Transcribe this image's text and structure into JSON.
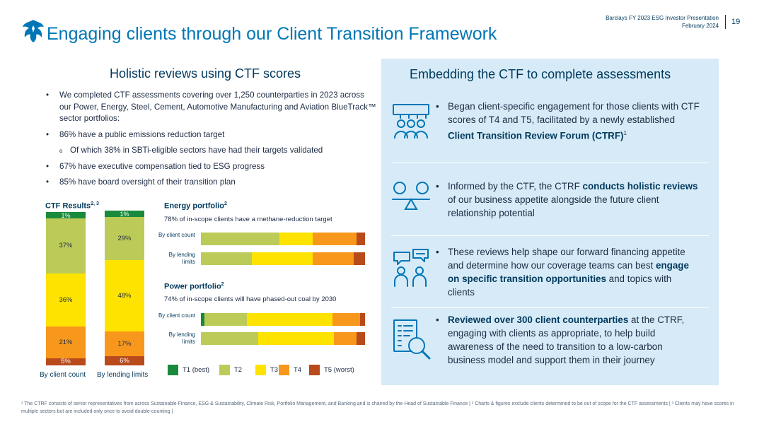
{
  "header": {
    "title": "Engaging clients through our Client Transition Framework",
    "meta_line1": "Barclays FY 2023 ESG Investor Presentation",
    "meta_line2": "February 2024",
    "page_number": "19"
  },
  "left": {
    "heading": "Holistic reviews using CTF scores",
    "bullets": [
      "We completed CTF assessments covering over 1,250 counterparties in 2023 across our Power, Energy, Steel, Cement, Automotive Manufacturing and Aviation BlueTrack™ sector portfolios:",
      "86% have a public emissions reduction target",
      "67% have executive compensation tied to ESG progress",
      "85% have board oversight of their transition plan"
    ],
    "sub_bullet": "Of which 38% in SBTi-eligible sectors have had their targets validated"
  },
  "ctf_results": {
    "title": "CTF Results",
    "title_sup": "2, 3",
    "col1_label": "By client count",
    "col2_label": "By lending limits",
    "col1_values": {
      "t5": "5%",
      "t4": "21%",
      "t3": "36%",
      "t2": "37%",
      "t1": "1%"
    },
    "col2_values": {
      "t5": "6%",
      "t4": "17%",
      "t3": "48%",
      "t2": "29%",
      "t1": "1%"
    }
  },
  "energy": {
    "title": "Energy portfolio",
    "title_sup": "2",
    "subtitle": "78% of in-scope clients have a methane-reduction target",
    "row1_label": "By client count",
    "row2_label": "By lending limits"
  },
  "power": {
    "title": "Power portfolio",
    "title_sup": "2",
    "subtitle": "74% of in-scope clients will have phased-out coal by 2030",
    "row1_label": "By client count",
    "row2_label": "By lending limits"
  },
  "chart_data": [
    {
      "type": "bar",
      "stacked": true,
      "orientation": "vertical",
      "title": "CTF Results",
      "categories": [
        "By client count",
        "By lending limits"
      ],
      "series": [
        {
          "name": "T1 (best)",
          "values": [
            1,
            1
          ]
        },
        {
          "name": "T2",
          "values": [
            37,
            29
          ]
        },
        {
          "name": "T3",
          "values": [
            36,
            48
          ]
        },
        {
          "name": "T4",
          "values": [
            21,
            17
          ]
        },
        {
          "name": "T5 (worst)",
          "values": [
            5,
            6
          ]
        }
      ],
      "ylim": [
        0,
        100
      ]
    },
    {
      "type": "bar",
      "stacked": true,
      "orientation": "horizontal",
      "title": "Energy portfolio",
      "categories": [
        "By client count",
        "By lending limits"
      ],
      "series": [
        {
          "name": "T1 (best)",
          "values": [
            0,
            0
          ]
        },
        {
          "name": "T2",
          "values": [
            48,
            31
          ]
        },
        {
          "name": "T3",
          "values": [
            20,
            37
          ]
        },
        {
          "name": "T4",
          "values": [
            27,
            25
          ]
        },
        {
          "name": "T5 (worst)",
          "values": [
            5,
            7
          ]
        }
      ],
      "xlim": [
        0,
        100
      ]
    },
    {
      "type": "bar",
      "stacked": true,
      "orientation": "horizontal",
      "title": "Power portfolio",
      "categories": [
        "By client count",
        "By lending limits"
      ],
      "series": [
        {
          "name": "T1 (best)",
          "values": [
            2,
            0
          ]
        },
        {
          "name": "T2",
          "values": [
            26,
            35
          ]
        },
        {
          "name": "T3",
          "values": [
            52,
            46
          ]
        },
        {
          "name": "T4",
          "values": [
            17,
            14
          ]
        },
        {
          "name": "T5 (worst)",
          "values": [
            3,
            5
          ]
        }
      ],
      "xlim": [
        0,
        100
      ]
    }
  ],
  "legend": [
    "T1 (best)",
    "T2",
    "T3",
    "T4",
    "T5 (worst)"
  ],
  "tier_colors": [
    "#1a8a3c",
    "#bccb57",
    "#ffe300",
    "#f7981d",
    "#b84a1b"
  ],
  "right": {
    "heading": "Embedding the CTF to complete assessments",
    "items": [
      {
        "icon": "audience-presentation-icon",
        "pre": "Began client-specific engagement for those clients with CTF scores of T4 and T5, facilitated by a newly established ",
        "bold": "Client Transition Review Forum (CTRF)",
        "sup": "1",
        "post": ""
      },
      {
        "icon": "balance-scale-icon",
        "pre": "Informed by the CTF, the CTRF ",
        "bold": "conducts holistic reviews",
        "sup": "",
        "post": " of our business appetite alongside the future client relationship potential"
      },
      {
        "icon": "conversation-icon",
        "pre": "These reviews help shape our forward financing appetite and determine how our coverage teams can best ",
        "bold": "engage on specific transition opportunities",
        "sup": "",
        "post": " and topics with clients"
      },
      {
        "icon": "document-magnifier-icon",
        "pre": "",
        "bold": "Reviewed over 300 client counterparties",
        "sup": "",
        "post": " at the CTRF, engaging with clients as appropriate, to help build awareness of the need to transition to a low-carbon business model and support them in their journey"
      }
    ]
  },
  "footnote": "¹ The CTRF consists of senior representatives from across Sustainable Finance, ESG & Sustainability, Climate Risk, Portfolio Management, and Banking and is chaired by the Head of Sustainable Finance | ² Charts & figures exclude clients determined to be out of scope for the CTF assessments | ³ Clients may have scores in multiple sectors but are included only once to avoid double-counting |"
}
